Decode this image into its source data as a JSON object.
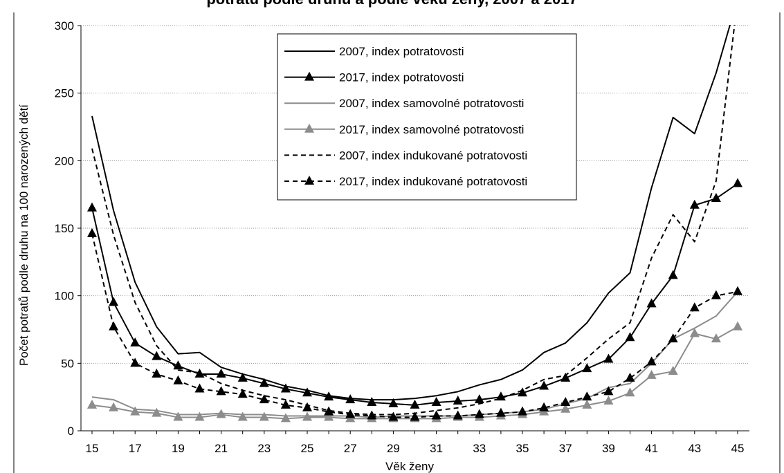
{
  "title_fragment": "potratů podle druhu a podle věku ženy, 2007 a 2017",
  "chart_data": {
    "type": "line",
    "title": "",
    "xlabel": "Věk ženy",
    "ylabel": "Počet potratů podle druhu na 100 narozených dětí",
    "xlim": [
      15,
      45
    ],
    "ylim": [
      0,
      300
    ],
    "x_ticks": [
      "15",
      "17",
      "19",
      "21",
      "23",
      "25",
      "27",
      "29",
      "31",
      "33",
      "35",
      "37",
      "39",
      "41",
      "43",
      "45"
    ],
    "y_ticks": [
      "0",
      "50",
      "100",
      "150",
      "200",
      "250",
      "300"
    ],
    "grid": "horizontal dotted",
    "legend_position": "top-center",
    "x": [
      15,
      16,
      17,
      18,
      19,
      20,
      21,
      22,
      23,
      24,
      25,
      26,
      27,
      28,
      29,
      30,
      31,
      32,
      33,
      34,
      35,
      36,
      37,
      38,
      39,
      40,
      41,
      42,
      43,
      44,
      45
    ],
    "series": [
      {
        "name": "2007, index potratovosti",
        "color": "#000000",
        "dash": "solid",
        "marker": "none",
        "values": [
          233,
          163,
          110,
          77,
          57,
          58,
          47,
          42,
          38,
          33,
          30,
          26,
          24,
          23,
          23,
          24,
          26,
          29,
          34,
          38,
          45,
          58,
          65,
          80,
          102,
          117,
          180,
          232,
          220,
          265,
          320
        ]
      },
      {
        "name": "2017, index potratovosti",
        "color": "#000000",
        "dash": "solid",
        "marker": "triangle",
        "values": [
          165,
          95,
          65,
          55,
          48,
          42,
          42,
          39,
          35,
          31,
          28,
          25,
          23,
          21,
          20,
          19,
          21,
          22,
          23,
          25,
          28,
          33,
          39,
          46,
          53,
          69,
          94,
          115,
          167,
          172,
          183
        ]
      },
      {
        "name": "2007, index samovolné potratovosti",
        "color": "#8c8c8c",
        "dash": "solid",
        "marker": "none",
        "values": [
          25,
          23,
          16,
          15,
          12,
          12,
          13,
          12,
          12,
          11,
          11,
          11,
          11,
          10,
          11,
          11,
          11,
          11,
          12,
          13,
          14,
          16,
          20,
          24,
          32,
          35,
          50,
          68,
          76,
          85,
          103
        ]
      },
      {
        "name": "2017, index samovolné potratovosti",
        "color": "#8c8c8c",
        "dash": "solid",
        "marker": "triangle",
        "values": [
          19,
          17,
          14,
          13,
          10,
          10,
          12,
          10,
          10,
          9,
          10,
          10,
          9,
          9,
          9,
          9,
          9,
          10,
          10,
          11,
          12,
          14,
          16,
          19,
          22,
          28,
          41,
          44,
          72,
          68,
          77
        ]
      },
      {
        "name": "2007, index indukované potratovosti",
        "color": "#000000",
        "dash": "dashed",
        "marker": "none",
        "values": [
          209,
          145,
          95,
          63,
          45,
          43,
          35,
          30,
          26,
          23,
          19,
          15,
          13,
          12,
          12,
          13,
          15,
          17,
          20,
          24,
          30,
          38,
          41,
          54,
          68,
          80,
          128,
          160,
          140,
          185,
          320
        ]
      },
      {
        "name": "2017, index indukované potratovosti",
        "color": "#000000",
        "dash": "dashed",
        "marker": "triangle",
        "values": [
          146,
          77,
          50,
          42,
          37,
          31,
          29,
          27,
          23,
          19,
          17,
          14,
          12,
          11,
          10,
          10,
          11,
          11,
          12,
          13,
          14,
          17,
          21,
          25,
          29,
          39,
          51,
          68,
          91,
          100,
          103
        ]
      }
    ]
  }
}
